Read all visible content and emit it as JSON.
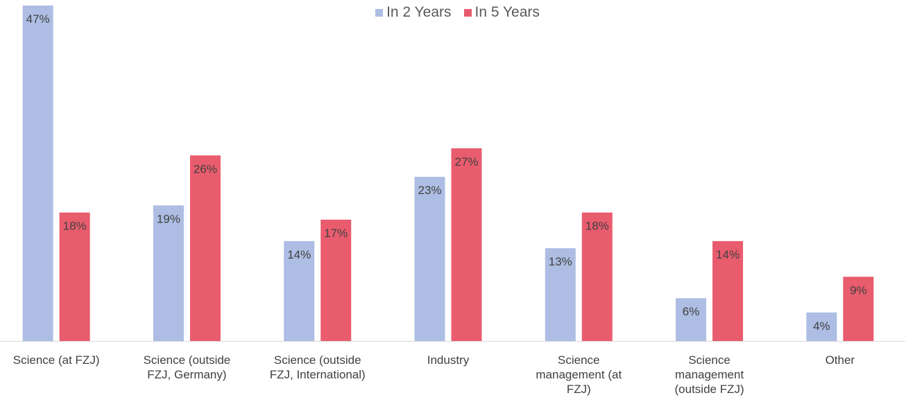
{
  "chart_data": {
    "type": "bar",
    "title": "",
    "xlabel": "",
    "ylabel": "",
    "ylim": [
      0,
      47
    ],
    "legend_position": "top-center",
    "grid": false,
    "categories": [
      [
        "Science (at FZJ)"
      ],
      [
        "Science (outside",
        "FZJ, Germany)"
      ],
      [
        "Science (outside",
        "FZJ, International)"
      ],
      [
        "Industry"
      ],
      [
        "Science",
        "management (at",
        "FZJ)"
      ],
      [
        "Science",
        "management",
        "(outside FZJ)"
      ],
      [
        "Other"
      ]
    ],
    "series": [
      {
        "name": "In 2 Years",
        "color": "#adbde3",
        "values": [
          47,
          19,
          14,
          23,
          13,
          6,
          4
        ],
        "labels": [
          "47%",
          "19%",
          "14%",
          "23%",
          "13%",
          "6%",
          "4%"
        ]
      },
      {
        "name": "In 5 Years",
        "color": "#e95c6e",
        "values": [
          18,
          26,
          17,
          27,
          18,
          14,
          9
        ],
        "labels": [
          "18%",
          "26%",
          "17%",
          "27%",
          "18%",
          "14%",
          "9%"
        ]
      }
    ]
  }
}
